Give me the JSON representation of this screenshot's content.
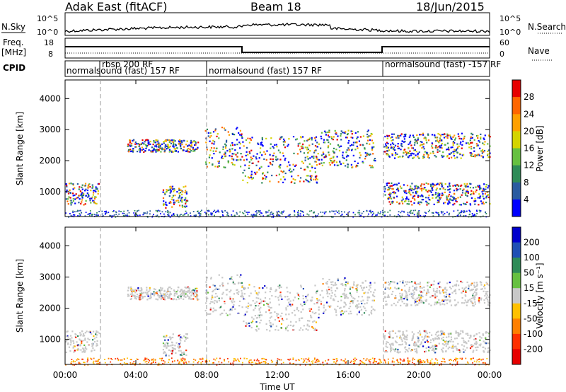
{
  "header": {
    "station": "Adak East (fitACF)",
    "beam": "Beam 18",
    "date": "18/Jun/2015"
  },
  "nsky_panel": {
    "label": "N.Sky",
    "right_label": "N.Search",
    "ticks_left": [
      "10^5",
      "10^0"
    ],
    "ticks_right": [
      "10^5",
      "10^0"
    ]
  },
  "freq_panel": {
    "label_line1": "Freq.",
    "label_line2": "[MHz]",
    "right_label": "Nave",
    "ticks_left": [
      "18",
      "8"
    ],
    "ticks_right": [
      "60",
      "0"
    ]
  },
  "cpid_panel": {
    "label": "CPID",
    "segments": [
      {
        "text": "normalsound (fast) 157 RF"
      },
      {
        "text": "rbsp 200 RF"
      },
      {
        "text": "normalsound (fast) 157 RF"
      },
      {
        "text": "normalsound (fast) -157 RF"
      }
    ]
  },
  "axis": {
    "x_ticks": [
      "00:00",
      "04:00",
      "08:00",
      "12:00",
      "16:00",
      "20:00",
      "00:00"
    ],
    "x_title": "Time UT",
    "y_ticks": [
      "1000",
      "2000",
      "3000",
      "4000"
    ],
    "y_title": "Slant Range [km]"
  },
  "colors": {
    "scatter_grey": "#c8c8c8",
    "trace": "#000000"
  },
  "chart_data": [
    {
      "type": "heatmap",
      "name": "Power",
      "xlabel": "Time UT",
      "ylabel": "Slant Range [km]",
      "xlim_hours": [
        0,
        24
      ],
      "ylim": [
        200,
        4600
      ],
      "colorbar": {
        "title": "Power [dB]",
        "ticks": [
          "28",
          "24",
          "20",
          "16",
          "12",
          "8",
          "4"
        ],
        "colors": [
          "#e60000",
          "#ff6600",
          "#ffa000",
          "#d4d400",
          "#66c040",
          "#2e8b57",
          "#2a5ba0",
          "#0000ff"
        ]
      },
      "echo_regions": [
        {
          "t_start": 0.0,
          "t_end": 1.9,
          "r_min": 600,
          "r_max": 1300
        },
        {
          "t_start": 3.5,
          "t_end": 7.5,
          "r_min": 2300,
          "r_max": 2700
        },
        {
          "t_start": 5.5,
          "t_end": 6.9,
          "r_min": 500,
          "r_max": 1200
        },
        {
          "t_start": 7.9,
          "t_end": 10.0,
          "r_min": 1800,
          "r_max": 3100
        },
        {
          "t_start": 10.0,
          "t_end": 14.3,
          "r_min": 1300,
          "r_max": 2800
        },
        {
          "t_start": 14.3,
          "t_end": 17.5,
          "r_min": 1800,
          "r_max": 3000
        },
        {
          "t_start": 18.0,
          "t_end": 24.0,
          "r_min": 2100,
          "r_max": 2900
        },
        {
          "t_start": 18.0,
          "t_end": 24.0,
          "r_min": 600,
          "r_max": 1300
        }
      ]
    },
    {
      "type": "heatmap",
      "name": "Velocity",
      "xlabel": "Time UT",
      "ylabel": "Slant Range [km]",
      "xlim_hours": [
        0,
        24
      ],
      "ylim": [
        200,
        4600
      ],
      "colorbar": {
        "title": "Velocity [m s⁻¹]",
        "ticks": [
          "200",
          "100",
          "50",
          "15",
          "-15",
          "-50",
          "-100",
          "-200"
        ],
        "colors": [
          "#0000cc",
          "#1f4fb4",
          "#2e8b57",
          "#66c040",
          "#c8c8c8",
          "#ffc000",
          "#ff7f00",
          "#ff3000",
          "#e60000"
        ]
      },
      "echo_regions": [
        {
          "t_start": 0.0,
          "t_end": 1.9,
          "r_min": 600,
          "r_max": 1300
        },
        {
          "t_start": 3.5,
          "t_end": 7.5,
          "r_min": 2300,
          "r_max": 2700
        },
        {
          "t_start": 5.5,
          "t_end": 6.9,
          "r_min": 500,
          "r_max": 1200
        },
        {
          "t_start": 7.9,
          "t_end": 10.0,
          "r_min": 1800,
          "r_max": 3100
        },
        {
          "t_start": 10.0,
          "t_end": 14.3,
          "r_min": 1300,
          "r_max": 2800
        },
        {
          "t_start": 14.3,
          "t_end": 17.5,
          "r_min": 1800,
          "r_max": 3000
        },
        {
          "t_start": 18.0,
          "t_end": 24.0,
          "r_min": 2100,
          "r_max": 2900
        },
        {
          "t_start": 18.0,
          "t_end": 24.0,
          "r_min": 600,
          "r_max": 1300
        }
      ]
    }
  ]
}
